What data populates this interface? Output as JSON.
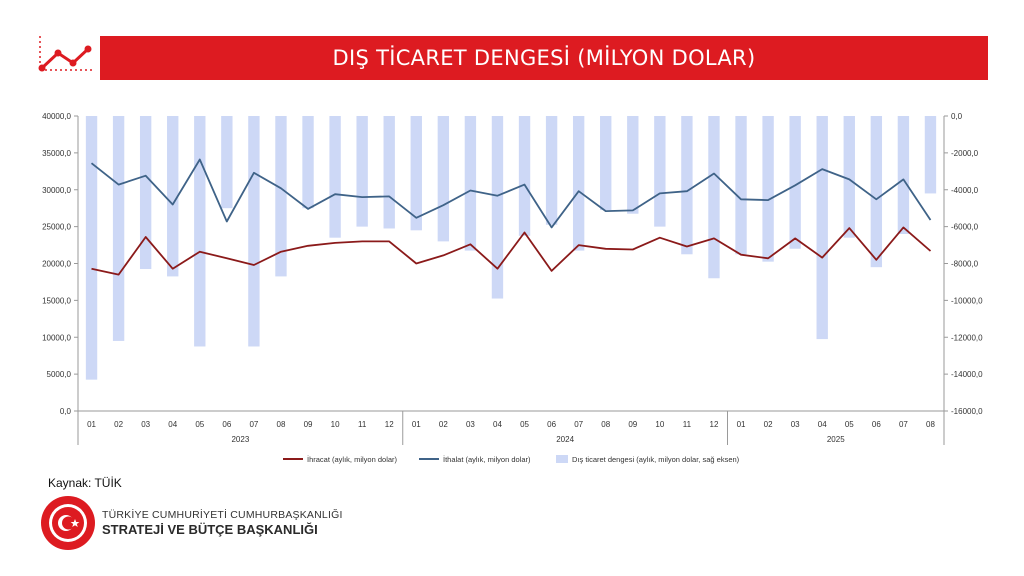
{
  "title": "DIŞ TİCARET DENGESİ (MİLYON DOLAR)",
  "source_label": "Kaynak: TÜİK",
  "organization": {
    "line1": "TÜRKİYE CUMHURİYETİ CUMHURBAŞKANLIĞI",
    "line2": "STRATEJİ VE BÜTÇE BAŞKANLIĞI",
    "seal_text": "T.C. CUMHURBAŞKANLIĞI STRATEJİ VE BÜTÇE BAŞKANLIĞI"
  },
  "colors": {
    "title_bar": "#dd1b21",
    "export_line": "#8b1a1a",
    "import_line": "#3f6388",
    "balance_bars": "#cdd8f6"
  },
  "icons": {
    "header": "trend-line-chart-icon",
    "logo": "crescent-star-seal-icon"
  },
  "chart_data": {
    "type": "bar",
    "categories": [
      "01",
      "02",
      "03",
      "04",
      "05",
      "06",
      "07",
      "08",
      "09",
      "10",
      "11",
      "12",
      "01",
      "02",
      "03",
      "04",
      "05",
      "06",
      "07",
      "08",
      "09",
      "10",
      "11",
      "12",
      "01",
      "02",
      "03",
      "04",
      "05",
      "06",
      "07",
      "08"
    ],
    "year_groups": [
      {
        "label": "2023",
        "count": 12
      },
      {
        "label": "2024",
        "count": 12
      },
      {
        "label": "2025",
        "count": 8
      }
    ],
    "series": [
      {
        "name": "İhracat (aylık, milyon dolar)",
        "type": "line",
        "axis": "left",
        "values": [
          19300,
          18500,
          23600,
          19300,
          21600,
          20700,
          19800,
          21600,
          22400,
          22800,
          23000,
          23000,
          20000,
          21100,
          22600,
          19300,
          24200,
          19000,
          22500,
          22000,
          21900,
          23500,
          22300,
          23400,
          21200,
          20700,
          23400,
          20800,
          24800,
          20500,
          24900,
          21700
        ]
      },
      {
        "name": "İthalat (aylık, milyon dolar)",
        "type": "line",
        "axis": "left",
        "values": [
          33600,
          30700,
          31900,
          28000,
          34100,
          25700,
          32300,
          30200,
          27400,
          29400,
          29000,
          29100,
          26200,
          27900,
          29900,
          29200,
          30700,
          24900,
          29800,
          27100,
          27200,
          29500,
          29800,
          32200,
          28700,
          28600,
          30600,
          32800,
          31400,
          28700,
          31400,
          25900
        ]
      },
      {
        "name": "Dış ticaret dengesi (aylık, milyon dolar, sağ eksen)",
        "type": "bar",
        "axis": "right",
        "values": [
          -14300,
          -12200,
          -8300,
          -8700,
          -12500,
          -5000,
          -12500,
          -8700,
          -5000,
          -6600,
          -6000,
          -6100,
          -6200,
          -6800,
          -7300,
          -9900,
          -6500,
          -5900,
          -7300,
          -5100,
          -5300,
          -6000,
          -7500,
          -8800,
          -7500,
          -7900,
          -7200,
          -12100,
          -6600,
          -8200,
          -6400,
          -4200
        ]
      }
    ],
    "y_left": {
      "min": 0,
      "max": 40000,
      "step": 5000
    },
    "y_right": {
      "min": -16000,
      "max": 0,
      "step": 2000
    },
    "y_left_ticks": [
      "0,0",
      "5000,0",
      "10000,0",
      "15000,0",
      "20000,0",
      "25000,0",
      "30000,0",
      "35000,0",
      "40000,0"
    ],
    "y_right_ticks": [
      "-16000,0",
      "-14000,0",
      "-12000,0",
      "-10000,0",
      "-8000,0",
      "-6000,0",
      "-4000,0",
      "-2000,0",
      "0,0"
    ],
    "legend_position": "bottom",
    "grid": false
  }
}
